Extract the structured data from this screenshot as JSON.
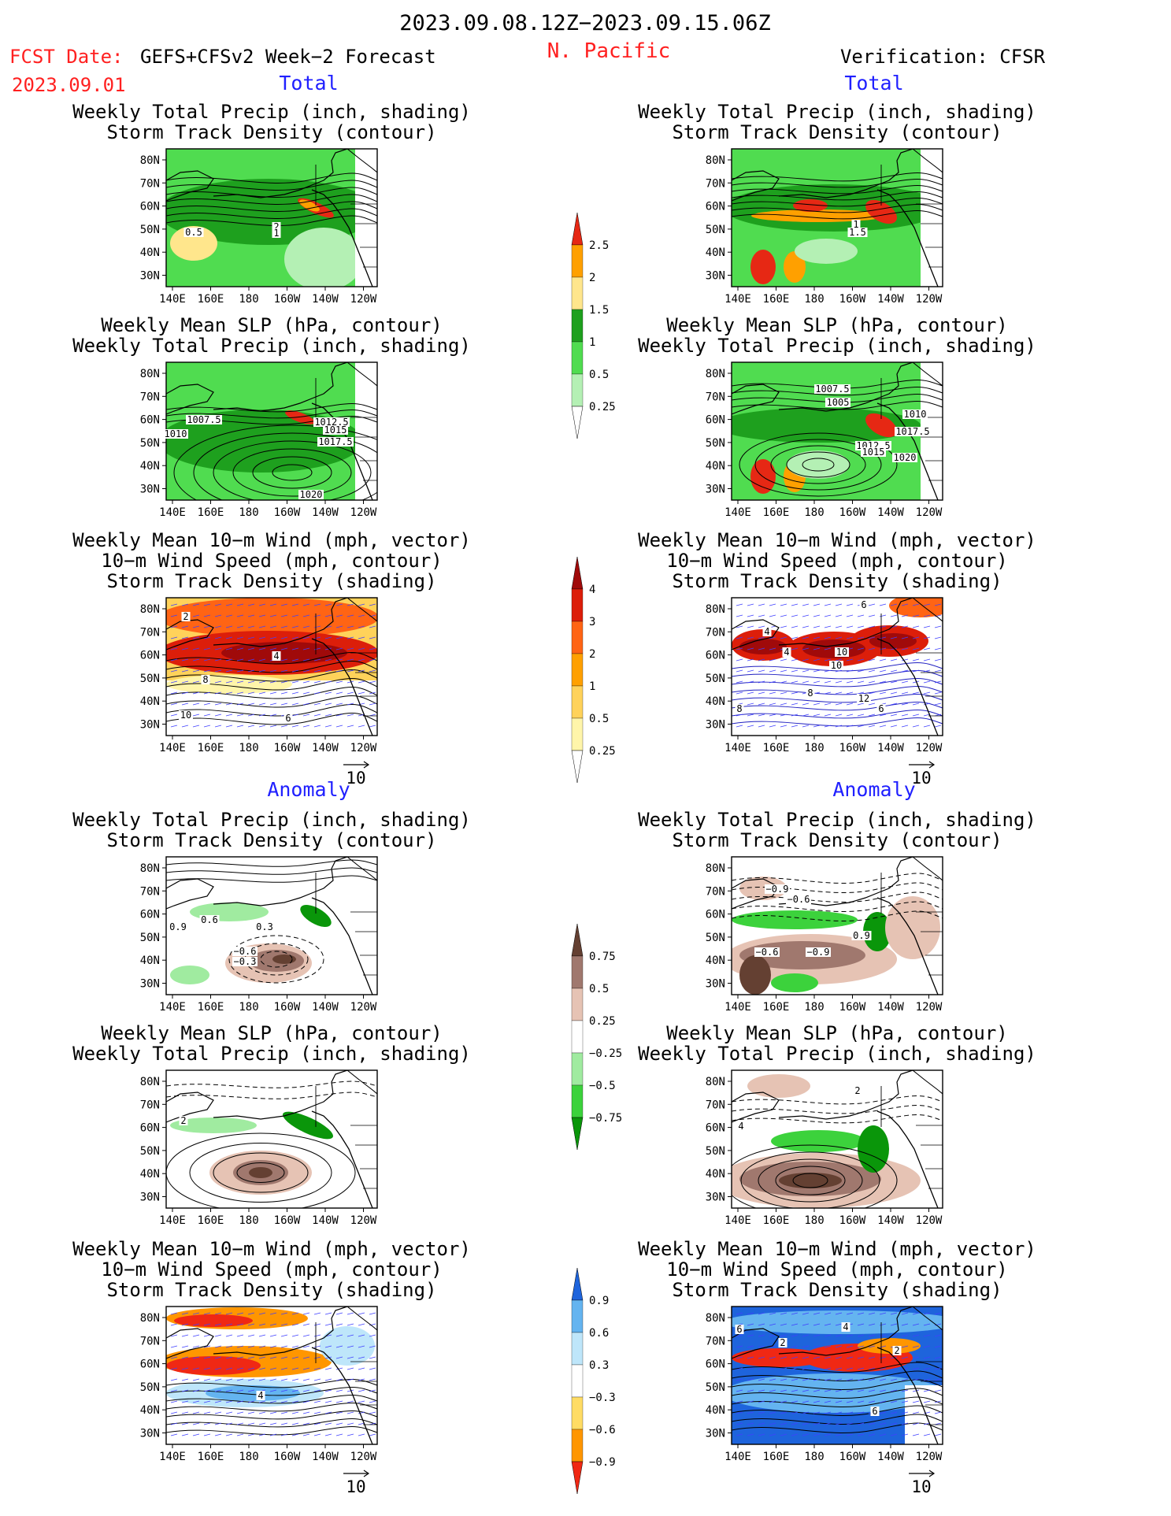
{
  "header": {
    "period": "2023.09.08.12Z−2023.09.15.06Z",
    "fcst_label": "FCST Date:",
    "fcst_date": "2023.09.01",
    "model": "GEFS+CFSv2 Week−2 Forecast",
    "region": "N. Pacific",
    "verification": "Verification: CFSR"
  },
  "colors": {
    "red": "#ff2020",
    "blue": "#2020ff",
    "black": "#000000"
  },
  "columns": {
    "left": {
      "total": "Total",
      "anomaly": "Anomaly"
    },
    "right": {
      "total": "Total",
      "anomaly": "Anomaly"
    }
  },
  "titles": {
    "precip_storm": [
      "Weekly Total Precip (inch, shading)",
      "Storm Track Density (contour)"
    ],
    "slp_precip": [
      "Weekly Mean SLP (hPa, contour)",
      "Weekly Total Precip (inch, shading)"
    ],
    "wind_storm": [
      "Weekly Mean 10−m Wind (mph, vector)",
      "10−m Wind Speed (mph, contour)",
      "Storm Track Density (shading)"
    ]
  },
  "axes": {
    "lat_ticks": [
      "80N",
      "70N",
      "60N",
      "50N",
      "40N",
      "30N"
    ],
    "lon_ticks": [
      "140E",
      "160E",
      "180",
      "160W",
      "140W",
      "120W"
    ],
    "vector_ref": "10"
  },
  "chart_data": [
    {
      "type": "colorbar",
      "name": "total_precip",
      "levels": [
        "0.25",
        "0.5",
        "1",
        "1.5",
        "2",
        "2.5"
      ],
      "colors": [
        "#ffffff",
        "#b4f0b4",
        "#50dc50",
        "#1ea01e",
        "#ffe68c",
        "#ffa000",
        "#e62814"
      ]
    },
    {
      "type": "colorbar",
      "name": "total_storm_density",
      "levels": [
        "0.25",
        "0.5",
        "1",
        "2",
        "3",
        "4"
      ],
      "colors": [
        "#ffffff",
        "#fff5aa",
        "#ffd25a",
        "#ffa000",
        "#ff6414",
        "#dc1e0a",
        "#a00a0a"
      ]
    },
    {
      "type": "colorbar",
      "name": "anomaly_precip",
      "levels": [
        "0.75",
        "0.5",
        "0.25",
        "−0.25",
        "−0.5",
        "−0.75"
      ],
      "colors": [
        "#0a960a",
        "#3cd23c",
        "#a0eba0",
        "#ffffff",
        "#e6c3b4",
        "#a0786e",
        "#644032"
      ]
    },
    {
      "type": "colorbar",
      "name": "anomaly_storm_density",
      "levels": [
        "0.9",
        "0.6",
        "0.3",
        "−0.3",
        "−0.6",
        "−0.9"
      ],
      "colors": [
        "#f02814",
        "#ff9600",
        "#ffdc64",
        "#ffffff",
        "#bee6fa",
        "#64b4f0",
        "#1e64dc"
      ]
    }
  ],
  "panels": {
    "total_left_precip": {
      "labels": [
        "2",
        "1",
        "0.5"
      ]
    },
    "total_right_precip": {
      "labels": [
        "1",
        "1.5"
      ]
    },
    "total_left_slp": {
      "labels": [
        "1007.5",
        "1010",
        "1012.5",
        "1015",
        "1017.5",
        "1020"
      ]
    },
    "total_right_slp": {
      "labels": [
        "1007.5",
        "1005",
        "1010",
        "1017.5",
        "1012.5",
        "1015",
        "1020"
      ]
    },
    "total_left_wind": {
      "labels": [
        "2",
        "4",
        "8",
        "10",
        "6"
      ]
    },
    "total_right_wind": {
      "labels": [
        "6",
        "4",
        "4",
        "10",
        "10",
        "8",
        "12",
        "6",
        "8"
      ]
    },
    "anom_left_precip": {
      "labels": [
        "0.9",
        "0.6",
        "0.3",
        "−0.6",
        "−0.3"
      ]
    },
    "anom_right_precip": {
      "labels": [
        "−0.9",
        "−0.6",
        "−0.6",
        "−0.9",
        "0.9"
      ]
    },
    "anom_left_slp": {
      "labels": [
        "2"
      ]
    },
    "anom_right_slp": {
      "labels": [
        "4",
        "2"
      ]
    },
    "anom_left_wind": {
      "labels": [
        "4"
      ]
    },
    "anom_right_wind": {
      "labels": [
        "4",
        "6",
        "2",
        "2",
        "6"
      ]
    }
  }
}
